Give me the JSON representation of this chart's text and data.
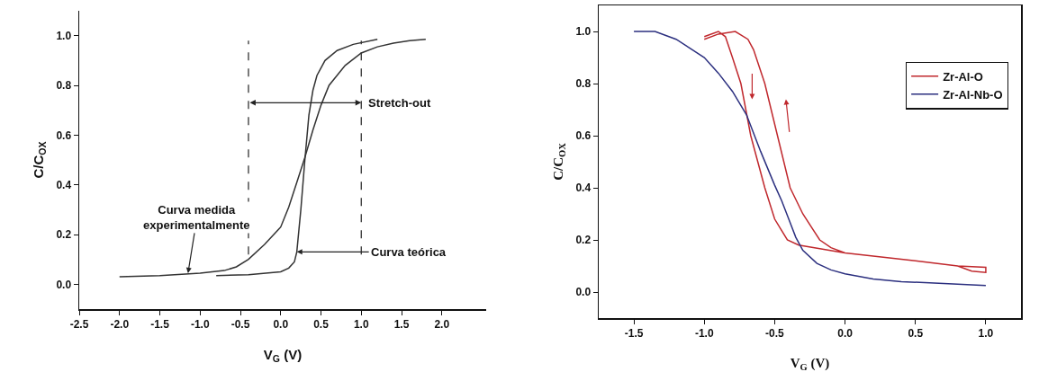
{
  "chart_data": [
    {
      "type": "line",
      "xlabel": "V$_{G}$ (V)",
      "ylabel": "C/C$_{OX}$",
      "xlim": [
        -2.5,
        2.55
      ],
      "xticks": [
        {
          "value": -2.5,
          "label": "-2.5"
        },
        {
          "value": -2.0,
          "label": "-2.0"
        },
        {
          "value": -1.5,
          "label": "-1.5"
        },
        {
          "value": -1.0,
          "label": "-1.0"
        },
        {
          "value": -0.5,
          "label": "-0.5"
        },
        {
          "value": 0,
          "label": "0.0"
        },
        {
          "value": 0.5,
          "label": "0.5"
        },
        {
          "value": 1.0,
          "label": "1.0"
        },
        {
          "value": 1.5,
          "label": "1.5"
        },
        {
          "value": 2.0,
          "label": "2.0"
        }
      ],
      "ylim": [
        -0.1,
        1.1
      ],
      "yticks": [
        {
          "value": 0,
          "label": "0.0"
        },
        {
          "value": 0.2,
          "label": "0.2"
        },
        {
          "value": 0.4,
          "label": "0.4"
        },
        {
          "value": 0.6,
          "label": "0.6"
        },
        {
          "value": 0.8,
          "label": "0.8"
        },
        {
          "value": 1.0,
          "label": "1.0"
        }
      ],
      "grid": false,
      "legend": false,
      "marker": "none",
      "line_style": "solid",
      "series": [
        {
          "color": "#333333",
          "x": [
            -2.0,
            -1.5,
            -1.0,
            -0.7,
            -0.55,
            -0.4,
            -0.2,
            0,
            0.1,
            0.2,
            0.3,
            0.4,
            0.5,
            0.6,
            0.8,
            1.0,
            1.2,
            1.4,
            1.6,
            1.8
          ],
          "values": [
            0.03,
            0.035,
            0.045,
            0.055,
            0.07,
            0.1,
            0.16,
            0.23,
            0.31,
            0.41,
            0.51,
            0.62,
            0.72,
            0.8,
            0.88,
            0.93,
            0.955,
            0.97,
            0.98,
            0.985
          ]
        },
        {
          "color": "#333333",
          "x": [
            -0.8,
            -0.4,
            0,
            0.1,
            0.17,
            0.2,
            0.25,
            0.3,
            0.35,
            0.4,
            0.45,
            0.55,
            0.7,
            0.9,
            1.2
          ],
          "values": [
            0.035,
            0.038,
            0.05,
            0.065,
            0.09,
            0.13,
            0.3,
            0.5,
            0.68,
            0.78,
            0.84,
            0.9,
            0.94,
            0.965,
            0.985
          ]
        }
      ],
      "ref_lines": [
        {
          "axis": "x",
          "value": -0.4,
          "line_style": "dashed",
          "color": "#333333"
        },
        {
          "axis": "x",
          "value": 1.0,
          "line_style": "dashed",
          "color": "#333333"
        }
      ],
      "annotations": [
        {
          "text": "Stretch-out",
          "x": 1.0,
          "y": 0.73
        },
        {
          "text": "Curva medida\nexperimentalmente",
          "x": -1.15,
          "y": 0.045
        },
        {
          "text": "Curva teórica",
          "x": 0.2,
          "y": 0.13
        }
      ]
    },
    {
      "type": "line",
      "xlabel": "V$_{G}$ (V)",
      "ylabel": "C/C$_{OX}$",
      "xlim": [
        -1.75,
        1.25
      ],
      "xticks": [
        {
          "value": -1.5,
          "label": "-1.5"
        },
        {
          "value": -1.0,
          "label": "-1.0"
        },
        {
          "value": -0.5,
          "label": "-0.5"
        },
        {
          "value": 0,
          "label": "0.0"
        },
        {
          "value": 0.5,
          "label": "0.5"
        },
        {
          "value": 1.0,
          "label": "1.0"
        }
      ],
      "ylim": [
        -0.1,
        1.1
      ],
      "yticks": [
        {
          "value": 0,
          "label": "0.0"
        },
        {
          "value": 0.2,
          "label": "0.2"
        },
        {
          "value": 0.4,
          "label": "0.4"
        },
        {
          "value": 0.6,
          "label": "0.6"
        },
        {
          "value": 0.8,
          "label": "0.8"
        },
        {
          "value": 1.0,
          "label": "1.0"
        }
      ],
      "grid": false,
      "legend": "top right",
      "marker": "none",
      "line_style": "solid",
      "series": [
        {
          "name": "Zr-Al-O",
          "color": "#c0282d",
          "x": [
            -1.0,
            -0.9,
            -0.85,
            -0.8,
            -0.74,
            -0.67,
            -0.57,
            -0.5,
            -0.41,
            -0.33,
            0,
            0.5,
            0.8,
            1.0,
            1.0,
            0.9,
            0.8,
            0.5,
            0,
            -0.1,
            -0.18,
            -0.3,
            -0.39,
            -0.48,
            -0.57,
            -0.65,
            -0.69,
            -0.78,
            -0.9,
            -1.0
          ],
          "values": [
            0.98,
            1.0,
            0.98,
            0.9,
            0.8,
            0.6,
            0.4,
            0.28,
            0.2,
            0.18,
            0.15,
            0.12,
            0.1,
            0.095,
            0.075,
            0.08,
            0.1,
            0.12,
            0.15,
            0.17,
            0.2,
            0.3,
            0.4,
            0.6,
            0.8,
            0.93,
            0.97,
            1.0,
            0.99,
            0.97
          ]
        },
        {
          "name": "Zr-Al-Nb-O",
          "color": "#2b2f7f",
          "x": [
            -1.5,
            -1.35,
            -1.2,
            -1.0,
            -0.9,
            -0.8,
            -0.7,
            -0.6,
            -0.5,
            -0.45,
            -0.4,
            -0.35,
            -0.3,
            -0.2,
            -0.1,
            0,
            0.2,
            0.4,
            0.6,
            0.8,
            1.0
          ],
          "values": [
            1.0,
            1.0,
            0.97,
            0.9,
            0.84,
            0.77,
            0.68,
            0.54,
            0.41,
            0.35,
            0.28,
            0.21,
            0.16,
            0.11,
            0.085,
            0.07,
            0.05,
            0.04,
            0.035,
            0.03,
            0.025
          ]
        }
      ]
    }
  ]
}
